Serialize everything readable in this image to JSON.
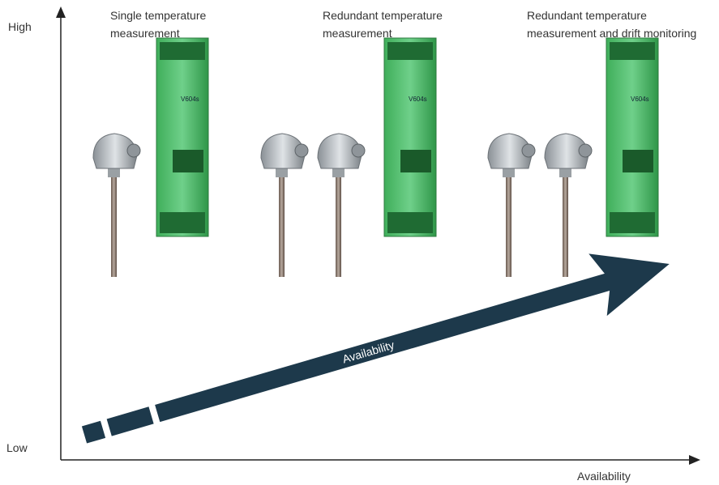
{
  "axes": {
    "y_high": "High",
    "y_low": "Low",
    "x_label": "Availability"
  },
  "trend_arrow": {
    "label": "Availability"
  },
  "columns": [
    {
      "title_lines": [
        "Single temperature",
        "measurement"
      ]
    },
    {
      "title_lines": [
        "Redundant temperature",
        "measurement"
      ]
    },
    {
      "title_lines": [
        "Redundant temperature",
        "measurement and drift monitoring"
      ]
    }
  ],
  "device": {
    "model": "V604s"
  }
}
